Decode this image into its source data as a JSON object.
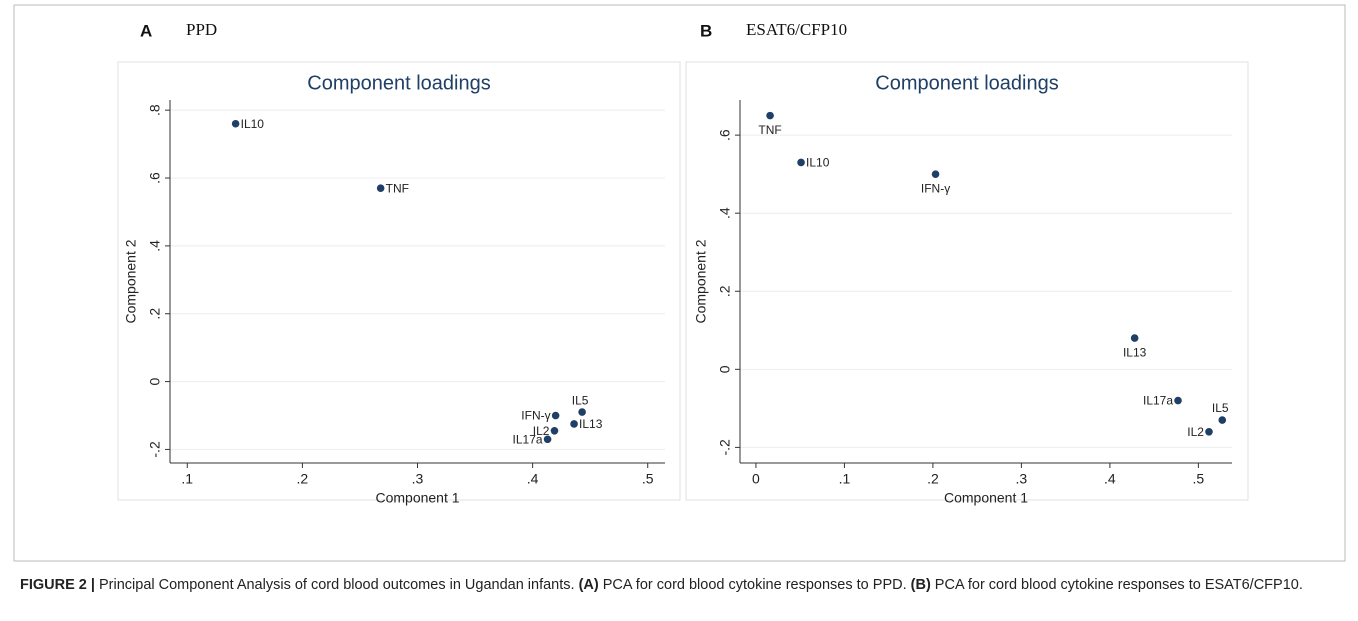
{
  "panels": [
    {
      "letter": "A",
      "name": "PPD"
    },
    {
      "letter": "B",
      "name": "ESAT6/CFP10"
    }
  ],
  "chart_data": [
    {
      "type": "scatter",
      "title": "Component loadings",
      "xlabel": "Component 1",
      "ylabel": "Component 2",
      "color": "#1f3f66",
      "grid": true,
      "labels": [
        "IL10",
        "TNF",
        "IFN-γ",
        "IL5",
        "IL13",
        "IL2",
        "IL17a"
      ],
      "x": [
        0.142,
        0.268,
        0.42,
        0.443,
        0.436,
        0.419,
        0.413
      ],
      "values": [
        0.76,
        0.57,
        -0.1,
        -0.09,
        -0.125,
        -0.145,
        -0.17
      ],
      "xlim": [
        0.085,
        0.515
      ],
      "ylim": [
        -0.24,
        0.83
      ],
      "xticks": [
        {
          "value": 0.1,
          "label": ".1"
        },
        {
          "value": 0.2,
          "label": ".2"
        },
        {
          "value": 0.3,
          "label": ".3"
        },
        {
          "value": 0.4,
          "label": ".4"
        },
        {
          "value": 0.5,
          "label": ".5"
        }
      ],
      "yticks": [
        {
          "value": -0.2,
          "label": "-.2"
        },
        0,
        {
          "value": 0.2,
          "label": ".2"
        },
        {
          "value": 0.4,
          "label": ".4"
        },
        {
          "value": 0.6,
          "label": ".6"
        },
        {
          "value": 0.8,
          "label": ".8"
        }
      ]
    },
    {
      "type": "scatter",
      "title": "Component loadings",
      "xlabel": "Component 1",
      "ylabel": "Component 2",
      "color": "#1f3f66",
      "grid": true,
      "labels": [
        "TNF",
        "IL10",
        "IFN-γ",
        "IL13",
        "IL17a",
        "IL5",
        "IL2"
      ],
      "x": [
        0.016,
        0.051,
        0.203,
        0.428,
        0.477,
        0.527,
        0.512
      ],
      "values": [
        0.65,
        0.53,
        0.5,
        0.08,
        -0.08,
        -0.13,
        -0.16
      ],
      "xlim": [
        -0.018,
        0.538
      ],
      "ylim": [
        -0.24,
        0.69
      ],
      "xticks": [
        0,
        {
          "value": 0.1,
          "label": ".1"
        },
        {
          "value": 0.2,
          "label": ".2"
        },
        {
          "value": 0.3,
          "label": ".3"
        },
        {
          "value": 0.4,
          "label": ".4"
        },
        {
          "value": 0.5,
          "label": ".5"
        }
      ],
      "yticks": [
        {
          "value": -0.2,
          "label": "-.2"
        },
        0,
        {
          "value": 0.2,
          "label": ".2"
        },
        {
          "value": 0.4,
          "label": ".4"
        },
        {
          "value": 0.6,
          "label": ".6"
        }
      ]
    }
  ],
  "caption": [
    {
      "text": "FIGURE 2 |",
      "bold": true
    },
    {
      "text": " Principal Component Analysis of cord blood outcomes in Ugandan infants. ",
      "bold": false
    },
    {
      "text": "(A)",
      "bold": true
    },
    {
      "text": " PCA for cord blood cytokine responses to PPD. ",
      "bold": false
    },
    {
      "text": "(B)",
      "bold": true
    },
    {
      "text": " PCA for cord blood cytokine responses to ESAT6/CFP10.",
      "bold": false
    }
  ]
}
